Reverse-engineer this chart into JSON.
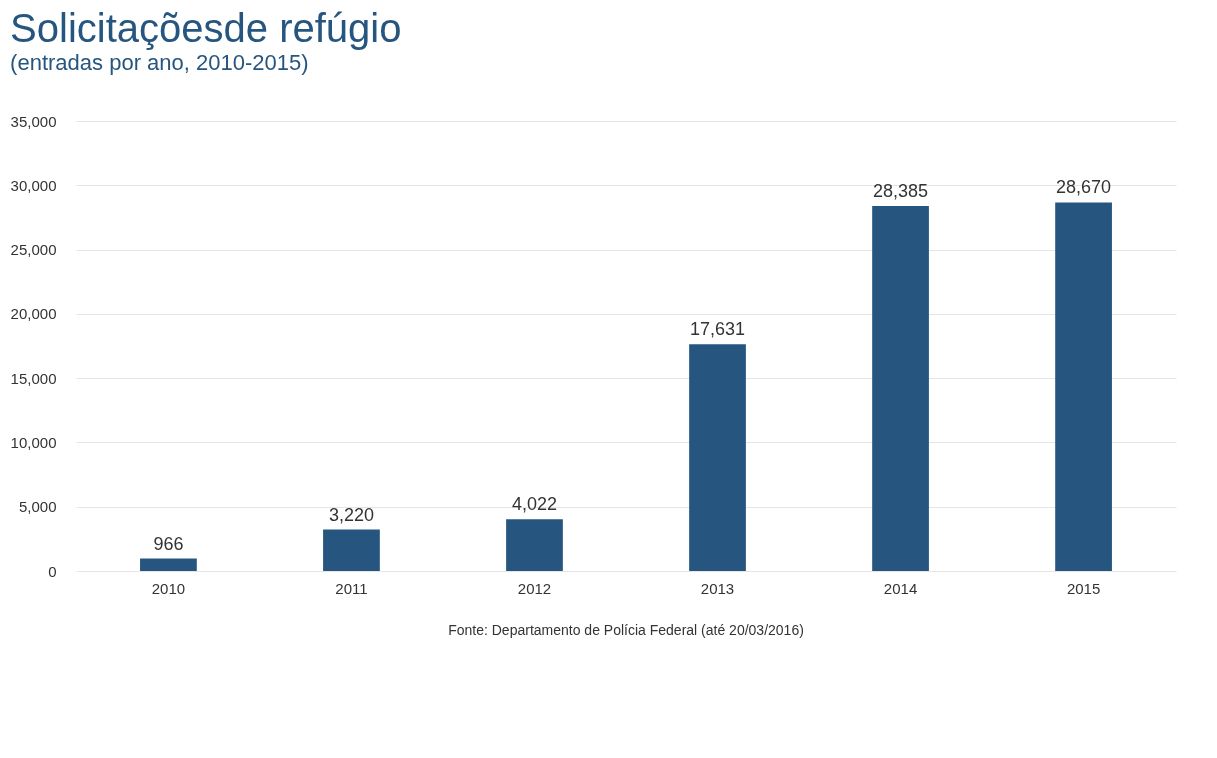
{
  "chart_data": {
    "type": "bar",
    "title": "Solicitaçõesde refúgio",
    "subtitle": "(entradas por ano, 2010-2015)",
    "categories": [
      "2010",
      "2011",
      "2012",
      "2013",
      "2014",
      "2015"
    ],
    "values": [
      966,
      3220,
      4022,
      17631,
      28385,
      28670
    ],
    "color": "#26567f",
    "ylim": [
      0,
      35000
    ],
    "yticks": [
      {
        "value": 0,
        "label": "0"
      },
      {
        "value": 5000,
        "label": "5,000"
      },
      {
        "value": 10000,
        "label": "10,000"
      },
      {
        "value": 15000,
        "label": "15,000"
      },
      {
        "value": 20000,
        "label": "20,000"
      },
      {
        "value": 25000,
        "label": "25,000"
      },
      {
        "value": 30000,
        "label": "30,000"
      },
      {
        "value": 35000,
        "label": "35,000"
      }
    ],
    "grid": "y",
    "value_labels": [
      "966",
      "3,220",
      "4,022",
      "17,631",
      "28,385",
      "28,670"
    ],
    "annotations": [
      "Fonte: Departamento de Polícia Federal (até 20/03/2016)"
    ]
  }
}
